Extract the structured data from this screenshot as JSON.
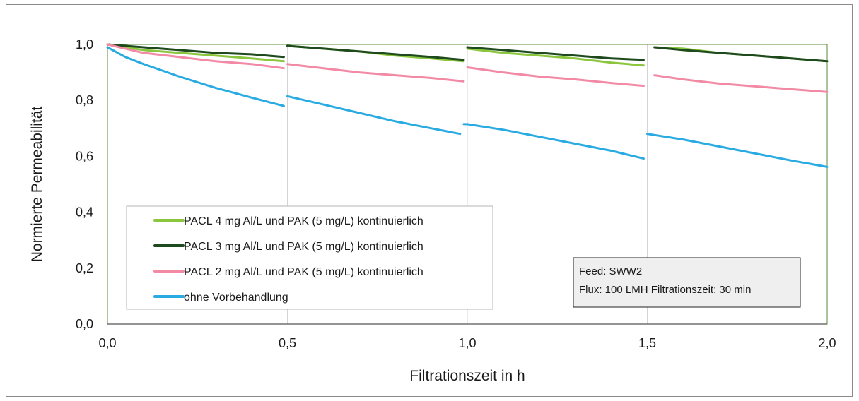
{
  "chart_data": {
    "type": "line",
    "title": "",
    "xlabel": "Filtrationszeit  in h",
    "ylabel": "Normierte  Permeabilität",
    "xlim": [
      0,
      2
    ],
    "ylim": [
      0,
      1
    ],
    "x_ticks": [
      "0,0",
      "0,5",
      "1,0",
      "1,5",
      "2,0"
    ],
    "y_ticks": [
      "0,0",
      "0,2",
      "0,4",
      "0,6",
      "0,8",
      "1,0"
    ],
    "grid": "vertical",
    "legend_position": "bottom-left",
    "series": [
      {
        "name": "PACL 4 mg Al/L und PAK (5 mg/L) kontinuierlich",
        "color": "#8cc63f",
        "segments": [
          {
            "x": [
              0.0,
              0.05,
              0.1,
              0.2,
              0.3,
              0.4,
              0.49
            ],
            "y": [
              1.0,
              0.99,
              0.98,
              0.97,
              0.96,
              0.95,
              0.94
            ]
          },
          {
            "x": [
              0.5,
              0.6,
              0.7,
              0.8,
              0.9,
              0.99
            ],
            "y": [
              0.995,
              0.985,
              0.975,
              0.96,
              0.95,
              0.94
            ]
          },
          {
            "x": [
              1.0,
              1.1,
              1.2,
              1.3,
              1.4,
              1.49
            ],
            "y": [
              0.985,
              0.97,
              0.96,
              0.95,
              0.935,
              0.925
            ]
          },
          {
            "x": [
              1.52,
              1.6,
              1.7,
              1.8,
              1.9,
              2.0
            ],
            "y": [
              0.99,
              0.985,
              0.97,
              0.96,
              0.95,
              0.94
            ]
          }
        ]
      },
      {
        "name": "PACL 3 mg Al/L und PAK (5 mg/L) kontinuierlich",
        "color": "#1e4a1e",
        "segments": [
          {
            "x": [
              0.0,
              0.05,
              0.1,
              0.2,
              0.3,
              0.4,
              0.49
            ],
            "y": [
              1.0,
              0.995,
              0.99,
              0.98,
              0.97,
              0.965,
              0.955
            ]
          },
          {
            "x": [
              0.5,
              0.6,
              0.7,
              0.8,
              0.9,
              0.99
            ],
            "y": [
              0.995,
              0.985,
              0.975,
              0.965,
              0.955,
              0.945
            ]
          },
          {
            "x": [
              1.0,
              1.1,
              1.2,
              1.3,
              1.4,
              1.49
            ],
            "y": [
              0.99,
              0.98,
              0.97,
              0.96,
              0.95,
              0.945
            ]
          },
          {
            "x": [
              1.52,
              1.6,
              1.7,
              1.8,
              1.9,
              2.0
            ],
            "y": [
              0.99,
              0.98,
              0.97,
              0.96,
              0.95,
              0.94
            ]
          }
        ]
      },
      {
        "name": "PACL 2 mg Al/L und PAK (5 mg/L) kontinuierlich",
        "color": "#f28aa6",
        "segments": [
          {
            "x": [
              0.0,
              0.05,
              0.1,
              0.2,
              0.3,
              0.4,
              0.49
            ],
            "y": [
              1.0,
              0.985,
              0.97,
              0.955,
              0.94,
              0.93,
              0.915
            ]
          },
          {
            "x": [
              0.5,
              0.6,
              0.7,
              0.8,
              0.9,
              0.99
            ],
            "y": [
              0.93,
              0.915,
              0.9,
              0.89,
              0.88,
              0.868
            ]
          },
          {
            "x": [
              1.0,
              1.1,
              1.2,
              1.3,
              1.4,
              1.49
            ],
            "y": [
              0.918,
              0.9,
              0.885,
              0.875,
              0.862,
              0.852
            ]
          },
          {
            "x": [
              1.52,
              1.6,
              1.7,
              1.8,
              1.9,
              2.0
            ],
            "y": [
              0.89,
              0.875,
              0.86,
              0.85,
              0.84,
              0.83
            ]
          }
        ]
      },
      {
        "name": "ohne Vorbehandlung",
        "color": "#29abe2",
        "segments": [
          {
            "x": [
              0.0,
              0.05,
              0.1,
              0.2,
              0.3,
              0.4,
              0.49
            ],
            "y": [
              0.99,
              0.955,
              0.93,
              0.885,
              0.845,
              0.81,
              0.78
            ]
          },
          {
            "x": [
              0.5,
              0.6,
              0.7,
              0.8,
              0.9,
              0.98
            ],
            "y": [
              0.815,
              0.785,
              0.755,
              0.725,
              0.7,
              0.68
            ]
          },
          {
            "x": [
              0.99,
              1.0,
              1.1,
              1.2,
              1.3,
              1.4,
              1.49
            ],
            "y": [
              0.715,
              0.715,
              0.695,
              0.67,
              0.645,
              0.62,
              0.592
            ]
          },
          {
            "x": [
              1.5,
              1.6,
              1.7,
              1.8,
              1.9,
              2.0
            ],
            "y": [
              0.68,
              0.66,
              0.635,
              0.61,
              0.585,
              0.562
            ]
          }
        ]
      }
    ],
    "annotation": {
      "line1": "Feed: SWW2",
      "line2": "Flux: 100 LMH   Filtrationszeit: 30 min"
    }
  }
}
